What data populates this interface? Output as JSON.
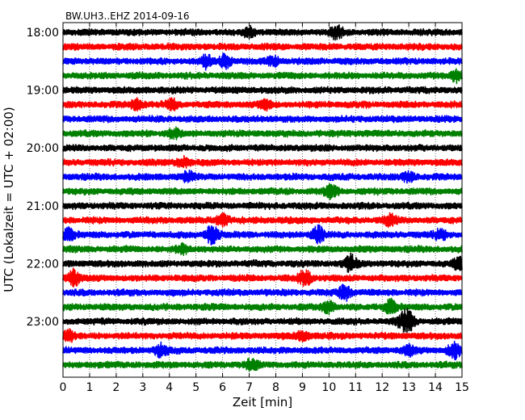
{
  "chart_data": {
    "type": "line",
    "subtype": "helicorder",
    "title": "BW.UH3..EHZ 2014-09-16",
    "xlabel": "Zeit  [min]",
    "ylabel": "UTC (Lokalzeit = UTC + 02:00)",
    "xlim": [
      0,
      15
    ],
    "x_ticks": [
      "0",
      "1",
      "2",
      "3",
      "4",
      "5",
      "6",
      "7",
      "8",
      "9",
      "10",
      "11",
      "12",
      "13",
      "14",
      "15"
    ],
    "y_tick_labels": [
      "18:00",
      "19:00",
      "20:00",
      "21:00",
      "22:00",
      "23:00"
    ],
    "grid": "vertical dotted",
    "trace_colors": [
      "#000000",
      "#ff0000",
      "#0000ff",
      "#008000"
    ],
    "trace_start_time": "18:00",
    "trace_interval_min": 15,
    "trace_count": 24,
    "events": [
      {
        "trace": 0,
        "x_min": 10.3,
        "amp": 2.2
      },
      {
        "trace": 0,
        "x_min": 7.0,
        "amp": 1.6
      },
      {
        "trace": 2,
        "x_min": 5.4,
        "amp": 2.0
      },
      {
        "trace": 2,
        "x_min": 6.1,
        "amp": 2.4
      },
      {
        "trace": 2,
        "x_min": 7.9,
        "amp": 1.5
      },
      {
        "trace": 3,
        "x_min": 14.8,
        "amp": 2.0
      },
      {
        "trace": 5,
        "x_min": 2.8,
        "amp": 1.8
      },
      {
        "trace": 5,
        "x_min": 4.1,
        "amp": 1.6
      },
      {
        "trace": 5,
        "x_min": 7.6,
        "amp": 1.6
      },
      {
        "trace": 7,
        "x_min": 4.2,
        "amp": 1.4
      },
      {
        "trace": 9,
        "x_min": 4.5,
        "amp": 1.8
      },
      {
        "trace": 10,
        "x_min": 4.7,
        "amp": 1.5
      },
      {
        "trace": 10,
        "x_min": 13.0,
        "amp": 1.6
      },
      {
        "trace": 11,
        "x_min": 10.1,
        "amp": 2.2
      },
      {
        "trace": 13,
        "x_min": 6.0,
        "amp": 2.0
      },
      {
        "trace": 13,
        "x_min": 12.3,
        "amp": 1.8
      },
      {
        "trace": 14,
        "x_min": 0.2,
        "amp": 2.0
      },
      {
        "trace": 14,
        "x_min": 5.6,
        "amp": 3.2
      },
      {
        "trace": 14,
        "x_min": 9.6,
        "amp": 2.8
      },
      {
        "trace": 14,
        "x_min": 14.2,
        "amp": 1.6
      },
      {
        "trace": 15,
        "x_min": 4.5,
        "amp": 1.6
      },
      {
        "trace": 16,
        "x_min": 10.8,
        "amp": 3.0
      },
      {
        "trace": 16,
        "x_min": 14.9,
        "amp": 2.0
      },
      {
        "trace": 17,
        "x_min": 0.4,
        "amp": 2.8
      },
      {
        "trace": 17,
        "x_min": 9.1,
        "amp": 2.6
      },
      {
        "trace": 18,
        "x_min": 10.6,
        "amp": 2.6
      },
      {
        "trace": 19,
        "x_min": 10.0,
        "amp": 2.0
      },
      {
        "trace": 19,
        "x_min": 12.3,
        "amp": 2.4
      },
      {
        "trace": 20,
        "x_min": 12.8,
        "amp": 2.2
      },
      {
        "trace": 20,
        "x_min": 13.0,
        "amp": 2.6
      },
      {
        "trace": 21,
        "x_min": 0.2,
        "amp": 2.0
      },
      {
        "trace": 21,
        "x_min": 9.0,
        "amp": 1.6
      },
      {
        "trace": 22,
        "x_min": 3.7,
        "amp": 2.2
      },
      {
        "trace": 22,
        "x_min": 13.0,
        "amp": 1.6
      },
      {
        "trace": 22,
        "x_min": 14.7,
        "amp": 3.0
      },
      {
        "trace": 23,
        "x_min": 7.1,
        "amp": 1.8
      }
    ]
  }
}
